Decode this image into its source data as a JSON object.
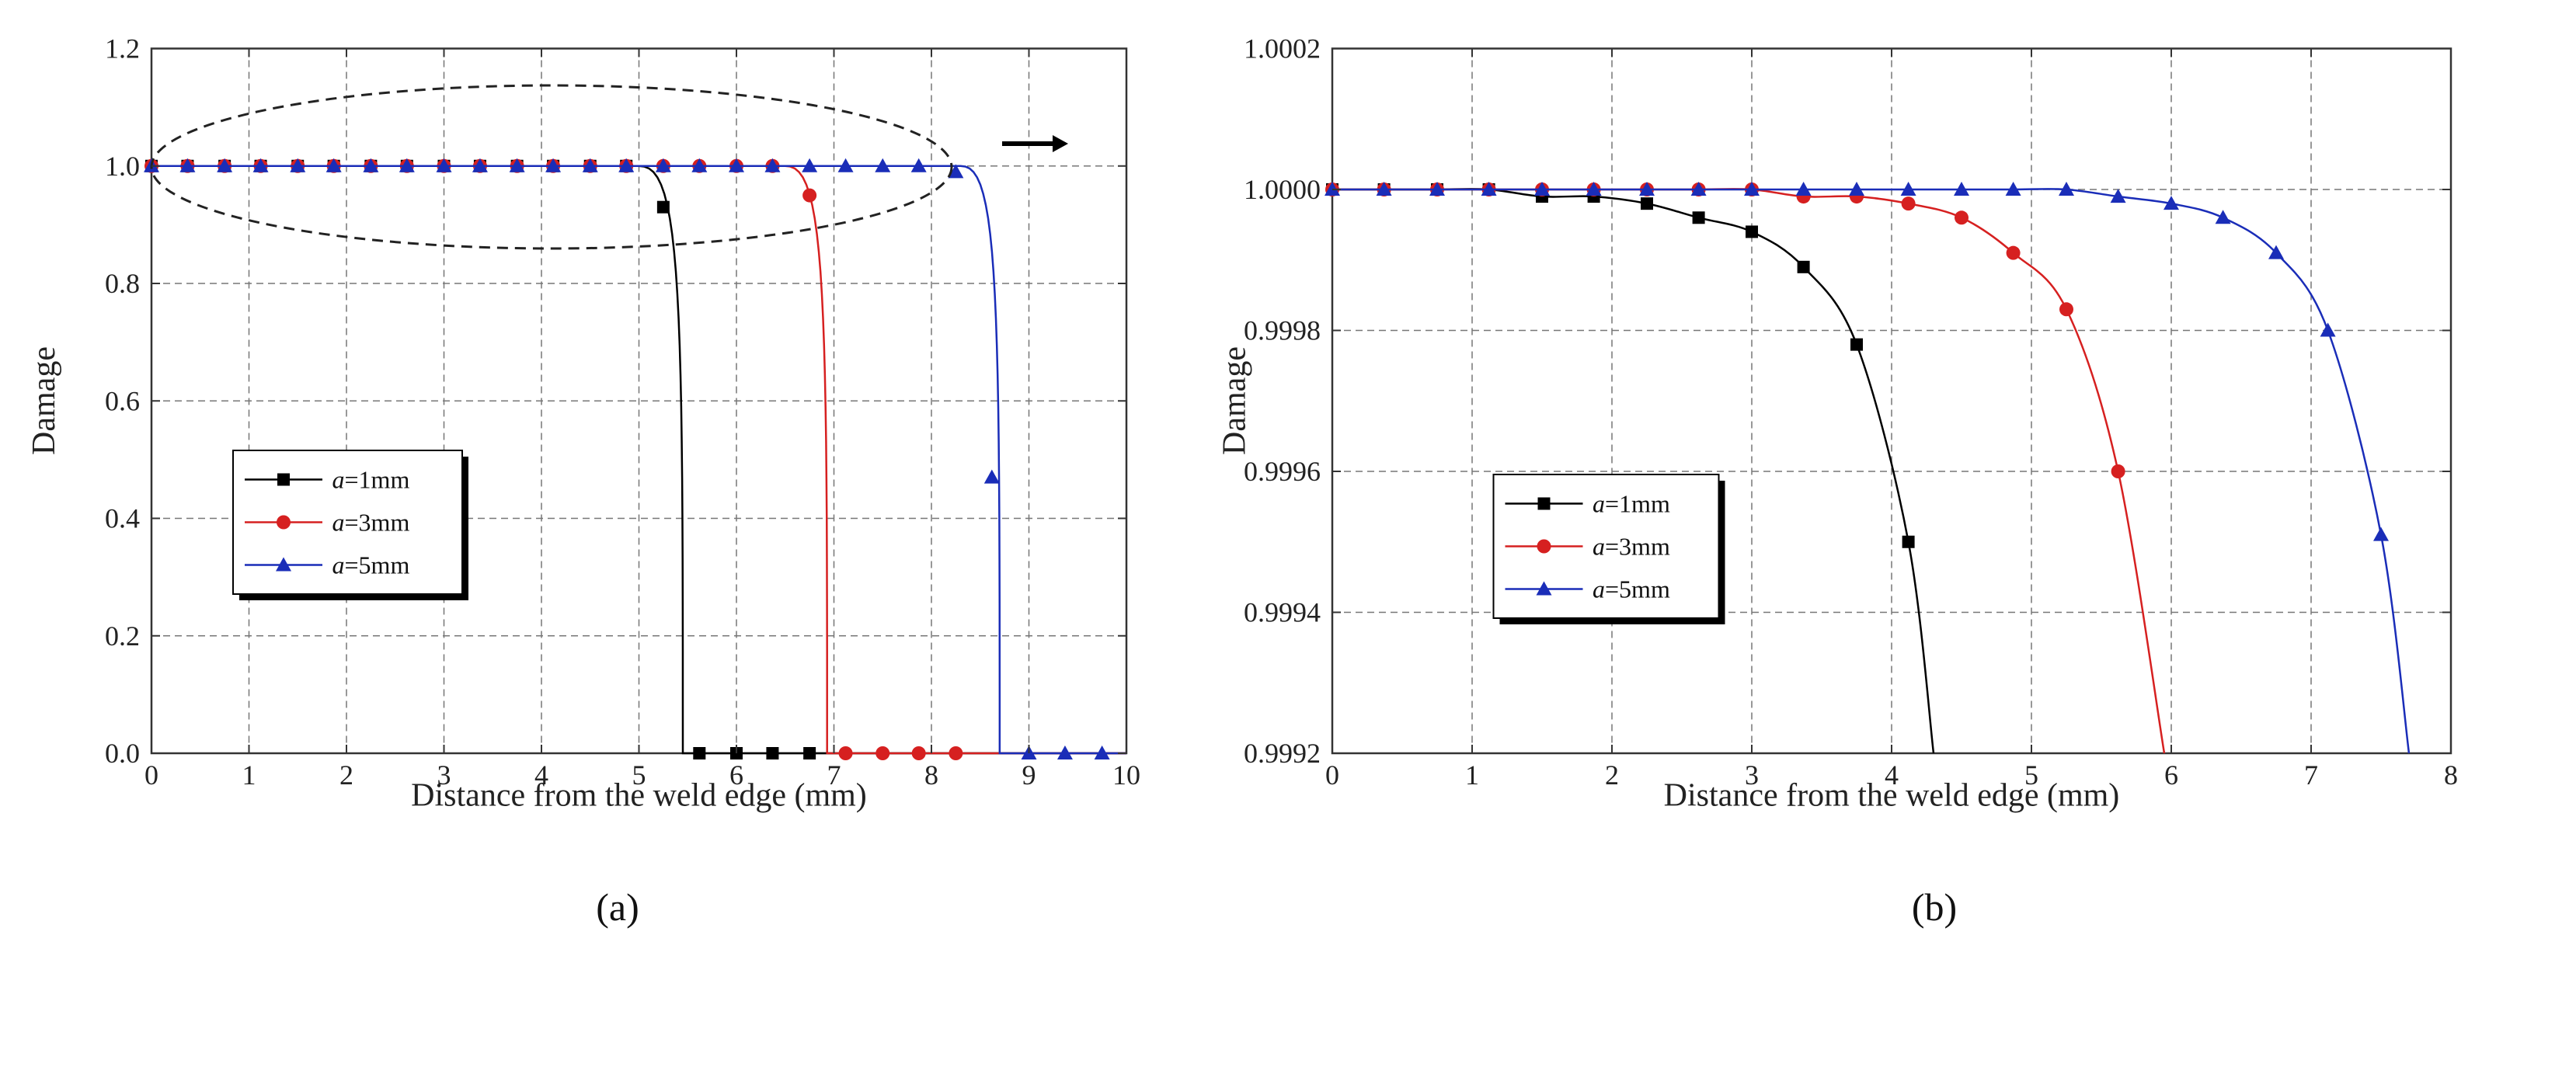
{
  "chart_data": [
    {
      "type": "line",
      "panel": "a",
      "title": "",
      "xlabel": "Distance from the weld edge (mm)",
      "ylabel": "Damage",
      "xlim": [
        0,
        10
      ],
      "ylim": [
        0,
        1.2
      ],
      "xticks": [
        "0",
        "1",
        "2",
        "3",
        "4",
        "5",
        "6",
        "7",
        "8",
        "9",
        "10"
      ],
      "yticks": [
        "0.0",
        "0.2",
        "0.4",
        "0.6",
        "0.8",
        "1.0",
        "1.2"
      ],
      "grid": true,
      "legend_position": "lower-left",
      "annotation": "dashed ellipse around the curve knees near damage 1.0 with an arrow pointing right",
      "series": [
        {
          "name": "a=1mm",
          "prefix": "a",
          "suffix": "=1mm",
          "color": "#000000",
          "marker": "square",
          "knee": 5.0,
          "drop": 5.45,
          "marker_x": [
            0,
            0.37,
            0.75,
            1.12,
            1.5,
            1.87,
            2.25,
            2.62,
            3.0,
            3.37,
            3.75,
            4.12,
            4.5,
            4.87,
            5.25,
            5.62,
            6.0,
            6.37,
            6.75
          ],
          "marker_y": [
            1,
            1,
            1,
            1,
            1,
            1,
            1,
            1,
            1,
            1,
            1,
            1,
            1,
            1,
            0.93,
            0,
            0,
            0,
            0
          ]
        },
        {
          "name": "a=3mm",
          "prefix": "a",
          "suffix": "=3mm",
          "color": "#d62020",
          "marker": "circle",
          "knee": 6.5,
          "drop": 6.93,
          "marker_x": [
            0,
            0.37,
            0.75,
            1.12,
            1.5,
            1.87,
            2.25,
            2.62,
            3.0,
            3.37,
            3.75,
            4.12,
            4.5,
            4.87,
            5.25,
            5.62,
            6.0,
            6.37,
            6.75,
            7.12,
            7.5,
            7.87,
            8.25
          ],
          "marker_y": [
            1,
            1,
            1,
            1,
            1,
            1,
            1,
            1,
            1,
            1,
            1,
            1,
            1,
            1,
            1,
            1,
            1,
            1,
            0.95,
            0,
            0,
            0,
            0
          ]
        },
        {
          "name": "a=5mm",
          "prefix": "a",
          "suffix": "=5mm",
          "color": "#1a2db8",
          "marker": "triangle",
          "knee": 8.3,
          "drop": 8.7,
          "marker_x": [
            0,
            0.37,
            0.75,
            1.12,
            1.5,
            1.87,
            2.25,
            2.62,
            3.0,
            3.37,
            3.75,
            4.12,
            4.5,
            4.87,
            5.25,
            5.62,
            6.0,
            6.37,
            6.75,
            7.12,
            7.5,
            7.87,
            8.25,
            8.62,
            9.0,
            9.37,
            9.75
          ],
          "marker_y": [
            1,
            1,
            1,
            1,
            1,
            1,
            1,
            1,
            1,
            1,
            1,
            1,
            1,
            1,
            1,
            1,
            1,
            1,
            1,
            1,
            1,
            1,
            0.99,
            0.47,
            0,
            0,
            0
          ]
        }
      ]
    },
    {
      "type": "line",
      "panel": "b",
      "title": "",
      "xlabel": "Distance from the weld edge (mm)",
      "ylabel": "Damage",
      "xlim": [
        0,
        8
      ],
      "ylim": [
        0.9992,
        1.0002
      ],
      "xticks": [
        "0",
        "1",
        "2",
        "3",
        "4",
        "5",
        "6",
        "7",
        "8"
      ],
      "yticks": [
        "0.9992",
        "0.9994",
        "0.9996",
        "0.9998",
        "1.0000",
        "1.0002"
      ],
      "grid": true,
      "legend_position": "lower-left",
      "series": [
        {
          "name": "a=1mm",
          "prefix": "a",
          "suffix": "=1mm",
          "color": "#000000",
          "marker": "square",
          "x": [
            0,
            0.37,
            0.75,
            1.12,
            1.5,
            1.87,
            2.25,
            2.62,
            3.0,
            3.37,
            3.75,
            4.12,
            4.3
          ],
          "y": [
            1.0,
            1.0,
            1.0,
            1.0,
            0.99999,
            0.99999,
            0.99998,
            0.99996,
            0.99994,
            0.99989,
            0.99978,
            0.9995,
            0.9992
          ]
        },
        {
          "name": "a=3mm",
          "prefix": "a",
          "suffix": "=3mm",
          "color": "#d62020",
          "marker": "circle",
          "x": [
            0,
            0.37,
            0.75,
            1.12,
            1.5,
            1.87,
            2.25,
            2.62,
            3.0,
            3.37,
            3.75,
            4.12,
            4.5,
            4.87,
            5.25,
            5.62,
            5.95
          ],
          "y": [
            1.0,
            1.0,
            1.0,
            1.0,
            1.0,
            1.0,
            1.0,
            1.0,
            1.0,
            0.99999,
            0.99999,
            0.99998,
            0.99996,
            0.99991,
            0.99983,
            0.9996,
            0.9992
          ]
        },
        {
          "name": "a=5mm",
          "prefix": "a",
          "suffix": "=5mm",
          "color": "#1a2db8",
          "marker": "triangle",
          "x": [
            0,
            0.37,
            0.75,
            1.12,
            1.5,
            1.87,
            2.25,
            2.62,
            3.0,
            3.37,
            3.75,
            4.12,
            4.5,
            4.87,
            5.25,
            5.62,
            6.0,
            6.37,
            6.75,
            7.12,
            7.5,
            7.7
          ],
          "y": [
            1.0,
            1.0,
            1.0,
            1.0,
            1.0,
            1.0,
            1.0,
            1.0,
            1.0,
            1.0,
            1.0,
            1.0,
            1.0,
            1.0,
            1.0,
            0.99999,
            0.99998,
            0.99996,
            0.99991,
            0.9998,
            0.99951,
            0.9992
          ]
        }
      ]
    }
  ],
  "panel_labels": {
    "a": "(a)",
    "b": "(b)"
  },
  "colors": {
    "axis": "#333333",
    "grid": "#777777"
  }
}
